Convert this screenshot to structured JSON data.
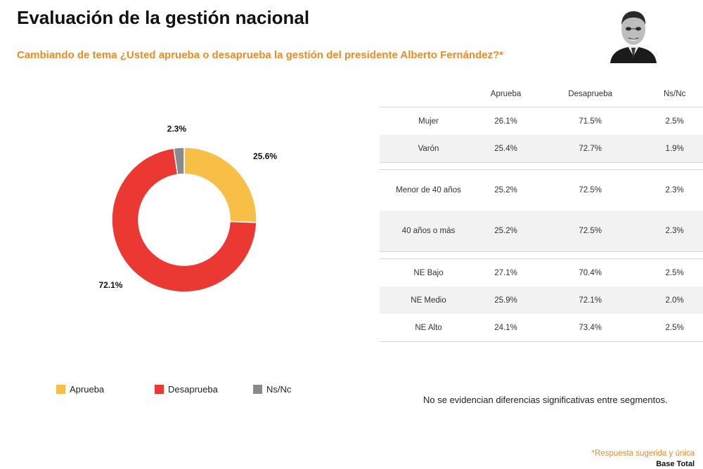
{
  "header": {
    "title": "Evaluación de la gestión nacional",
    "subtitle": "Cambiando de tema ¿Usted aprueba o desaprueba la gestión del presidente Alberto Fernández?*"
  },
  "chart_data": {
    "type": "pie",
    "variant": "donut",
    "categories": [
      "Aprueba",
      "Desaprueba",
      "Ns/Nc"
    ],
    "values": [
      25.6,
      72.1,
      2.3
    ],
    "labels": [
      "25.6%",
      "72.1%",
      "2.3%"
    ],
    "colors": [
      "#f7bf45",
      "#ec3833",
      "#8a8a8a"
    ],
    "legend_position": "bottom"
  },
  "table": {
    "headers": [
      "",
      "Aprueba",
      "Desaprueba",
      "Ns/Nc"
    ],
    "groups": [
      [
        [
          "Mujer",
          "26.1%",
          "71.5%",
          "2.5%"
        ],
        [
          "Varón",
          "25.4%",
          "72.7%",
          "1.9%"
        ]
      ],
      [
        [
          "Menor de 40 años",
          "25.2%",
          "72.5%",
          "2.3%"
        ],
        [
          "40 años o más",
          "25.2%",
          "72.5%",
          "2.3%"
        ]
      ],
      [
        [
          "NE Bajo",
          "27.1%",
          "70.4%",
          "2.5%"
        ],
        [
          "NE Medio",
          "25.9%",
          "72.1%",
          "2.0%"
        ],
        [
          "NE Alto",
          "24.1%",
          "73.4%",
          "2.5%"
        ]
      ]
    ]
  },
  "note": "No se evidencian diferencias significativas entre segmentos.",
  "footnotes": {
    "respuesta": "*Respuesta sugerida y única",
    "base": "Base Total"
  },
  "colors": {
    "accent": "#f08a24",
    "table_shade": "#f2f2f2"
  }
}
